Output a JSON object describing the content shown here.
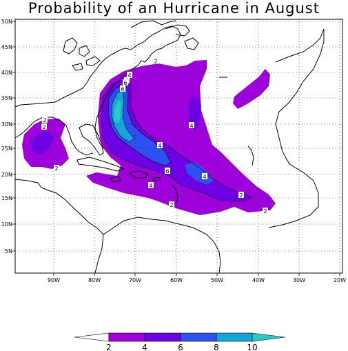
{
  "title": "Probability of an Hurricane in August",
  "colors": {
    "band_2_4": "#9e00dc",
    "band_4_6": "#6e00e6",
    "band_6_8": "#2d50f0",
    "band_8_10": "#14a5dc",
    "band_10_plus": "#28c8c8",
    "coast": "#000000",
    "grid": "#000000"
  },
  "axes": {
    "lon_labels": [
      "90W",
      "80W",
      "70W",
      "60W",
      "50W",
      "40W",
      "30W",
      "20W"
    ],
    "lat_labels": [
      "5N",
      "10N",
      "15N",
      "20N",
      "25N",
      "30N",
      "35N",
      "40N",
      "45N",
      "50N"
    ]
  },
  "contour_labels": [
    "2",
    "2",
    "4",
    "2",
    "4",
    "6",
    "6",
    "4",
    "4",
    "6",
    "4",
    "4",
    "2",
    "2",
    "2",
    "2"
  ],
  "colorbar": {
    "labels": [
      "2",
      "4",
      "6",
      "8",
      "10"
    ]
  }
}
